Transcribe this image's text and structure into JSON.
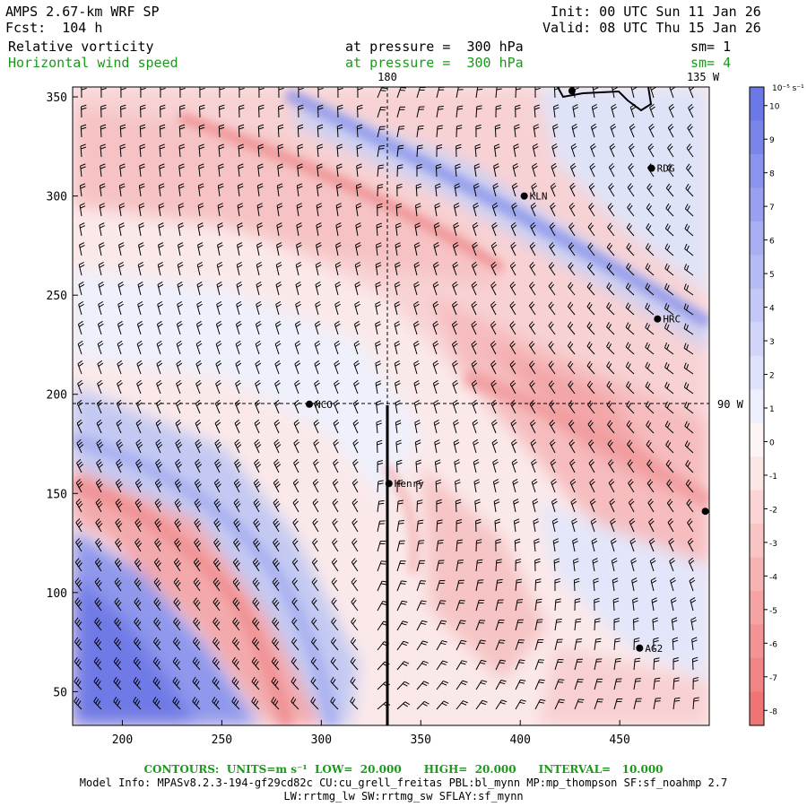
{
  "header": {
    "model": "AMPS 2.67-km WRF SP",
    "forecast": "Fcst:  104 h",
    "init": "Init: 00 UTC Sun 11 Jan 26",
    "valid": "Valid: 08 UTC Thu 15 Jan 26",
    "field1_name": "Relative vorticity",
    "field1_level": "at pressure =  300 hPa",
    "field1_smooth": "sm= 1",
    "field2_name": "Horizontal wind speed",
    "field2_level": "at pressure =  300 hPa",
    "field2_smooth": "sm= 4"
  },
  "map": {
    "x_ticks": [
      "200",
      "250",
      "300",
      "350",
      "400",
      "450"
    ],
    "x_tick_values": [
      200,
      250,
      300,
      350,
      400,
      450
    ],
    "y_ticks": [
      "50",
      "100",
      "150",
      "200",
      "250",
      "300",
      "350"
    ],
    "y_tick_values": [
      50,
      100,
      150,
      200,
      250,
      300,
      350
    ],
    "x_range": [
      175,
      495
    ],
    "y_range": [
      33,
      355
    ],
    "meridian_top_label": "180",
    "meridian_135_label": "135 W",
    "meridian_90_label": "90 W",
    "stations": [
      {
        "name": "RDG",
        "x": 466,
        "y": 314
      },
      {
        "name": "KLN",
        "x": 402,
        "y": 300
      },
      {
        "name": "HRC",
        "x": 469,
        "y": 238
      },
      {
        "name": "NCO",
        "x": 294,
        "y": 195
      },
      {
        "name": "Henry",
        "x": 334,
        "y": 155
      },
      {
        "name": "AG2",
        "x": 460,
        "y": 72
      },
      {
        "name": "",
        "x": 426,
        "y": 353
      },
      {
        "name": "",
        "x": 493,
        "y": 141
      }
    ]
  },
  "colorbar": {
    "units": "10⁻⁵ s⁻¹",
    "labels": [
      "10",
      "9",
      "8",
      "7",
      "6",
      "5",
      "4",
      "3",
      "2",
      "1",
      "0",
      "-1",
      "-2",
      "-3",
      "-4",
      "-5",
      "-6",
      "-7",
      "-8"
    ],
    "colors": [
      "#6c78e8",
      "#7a85ea",
      "#8a93ed",
      "#99a0ef",
      "#a8aef2",
      "#b6bbf4",
      "#c4c8f6",
      "#d2d5f9",
      "#e0e2fb",
      "#eeeffd",
      "#fdf5f5",
      "#fde6e6",
      "#fbd5d5",
      "#f9c4c4",
      "#f7b3b3",
      "#f5a3a3",
      "#f39393",
      "#f18484",
      "#ef7575"
    ]
  },
  "footer": {
    "contours": "CONTOURS:  UNITS=m s⁻¹  LOW=  20.000      HIGH=  20.000      INTERVAL=   10.000",
    "model_info": "Model Info: MPASv8.2.3-194-gf29cd82c CU:cu_grell_freitas PBL:bl_mynn MP:mp_thompson SF:sf_noahmp 2.7",
    "model_info2": "LW:rrtmg_lw SW:rrtmg_sw SFLAY:sf_mynn"
  }
}
